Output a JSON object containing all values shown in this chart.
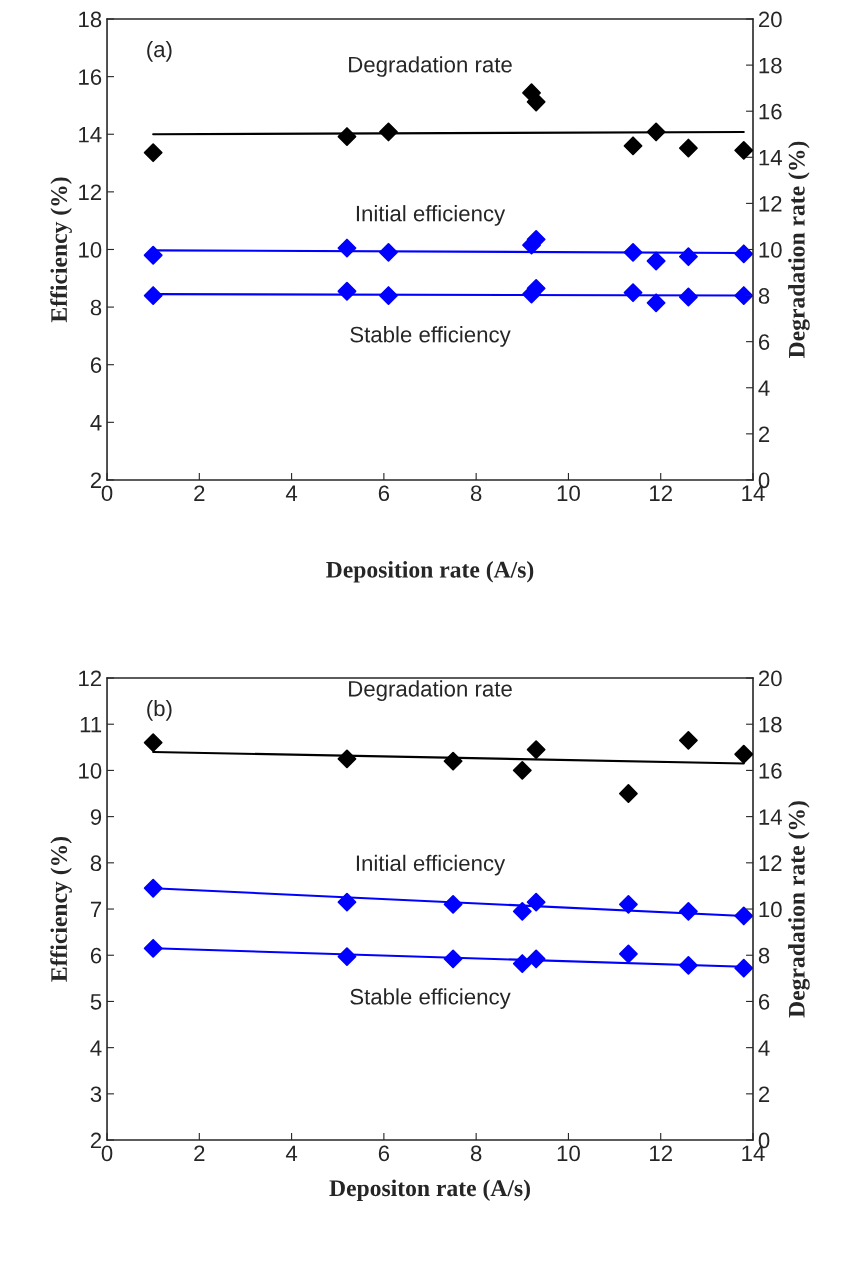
{
  "chart_data": [
    {
      "type": "scatter",
      "xlabel": "Deposition rate (A/s)",
      "ylabel": "Efficiency (%)",
      "y2label": "Degradation rate (%)",
      "xlim": [
        0,
        14
      ],
      "xticks": [
        0,
        2,
        4,
        6,
        8,
        10,
        12,
        14
      ],
      "ylim": [
        2,
        18
      ],
      "yticks": [
        2,
        4,
        6,
        8,
        10,
        12,
        14,
        16,
        18
      ],
      "y2lim": [
        0,
        20
      ],
      "y2ticks": [
        0,
        2,
        4,
        6,
        8,
        10,
        12,
        14,
        16,
        18,
        20
      ],
      "grid": false,
      "marker": "diamond",
      "annotations": [
        "(a)"
      ],
      "series": [
        {
          "axis": "y2",
          "color": "#000000",
          "x": [
            1,
            5.2,
            6.1,
            9.2,
            9.3,
            11.4,
            11.9,
            12.6,
            13.8
          ],
          "values": [
            14.2,
            14.9,
            15.1,
            16.8,
            16.4,
            14.5,
            15.1,
            14.4,
            14.3
          ]
        },
        {
          "color": "#0000ff",
          "x": [
            1,
            5.2,
            6.1,
            9.2,
            9.3,
            11.4,
            11.9,
            12.6,
            13.8
          ],
          "values": [
            9.8,
            10.05,
            9.9,
            10.15,
            10.35,
            9.9,
            9.6,
            9.75,
            9.85
          ]
        },
        {
          "color": "#0000ff",
          "x": [
            1,
            5.2,
            6.1,
            9.2,
            9.3,
            11.4,
            11.9,
            12.6,
            13.8
          ],
          "values": [
            8.4,
            8.55,
            8.4,
            8.45,
            8.65,
            8.5,
            8.15,
            8.35,
            8.4
          ]
        },
        {
          "type": "line",
          "name": "Degradation rate",
          "axis": "y2",
          "color": "#000000",
          "marker": "none",
          "x": [
            1,
            13.8
          ],
          "values": [
            15.0,
            15.1
          ]
        },
        {
          "type": "line",
          "name": "Initial efficiency",
          "color": "#0000ff",
          "marker": "none",
          "x": [
            1,
            13.8
          ],
          "values": [
            9.97,
            9.88
          ]
        },
        {
          "type": "line",
          "name": "Stable efficiency",
          "color": "#0000ff",
          "marker": "none",
          "x": [
            1,
            13.8
          ],
          "values": [
            8.45,
            8.4
          ]
        }
      ]
    },
    {
      "type": "scatter",
      "xlabel": "Depositon rate (A/s)",
      "ylabel": "Efficiency (%)",
      "y2label": "Degradation rate (%)",
      "xlim": [
        0,
        14
      ],
      "xticks": [
        0,
        2,
        4,
        6,
        8,
        10,
        12,
        14
      ],
      "ylim": [
        2,
        12
      ],
      "yticks": [
        2,
        3,
        4,
        5,
        6,
        7,
        8,
        9,
        10,
        11,
        12
      ],
      "y2lim": [
        0,
        20
      ],
      "y2ticks": [
        0,
        2,
        4,
        6,
        8,
        10,
        12,
        14,
        16,
        18,
        20
      ],
      "grid": false,
      "marker": "diamond",
      "annotations": [
        "(b)"
      ],
      "series": [
        {
          "axis": "y2",
          "color": "#000000",
          "x": [
            1,
            5.2,
            7.5,
            9.0,
            9.3,
            11.3,
            12.6,
            13.8
          ],
          "values": [
            17.2,
            16.5,
            16.4,
            16.0,
            16.9,
            15.0,
            17.3,
            16.7
          ]
        },
        {
          "color": "#0000ff",
          "x": [
            1,
            5.2,
            7.5,
            9.0,
            9.3,
            11.3,
            12.6,
            13.8
          ],
          "values": [
            7.45,
            7.15,
            7.1,
            6.95,
            7.15,
            7.1,
            6.95,
            6.85
          ]
        },
        {
          "color": "#0000ff",
          "x": [
            1,
            5.2,
            7.5,
            9.0,
            9.3,
            11.3,
            12.6,
            13.8
          ],
          "values": [
            6.15,
            5.97,
            5.92,
            5.82,
            5.92,
            6.03,
            5.78,
            5.72
          ]
        },
        {
          "type": "line",
          "name": "Degradation rate",
          "axis": "y2",
          "color": "#000000",
          "marker": "none",
          "x": [
            1,
            13.8
          ],
          "values": [
            16.8,
            16.3
          ]
        },
        {
          "type": "line",
          "name": "Initial efficiency",
          "color": "#0000ff",
          "marker": "none",
          "x": [
            1,
            13.8
          ],
          "values": [
            7.45,
            6.85
          ]
        },
        {
          "type": "line",
          "name": "Stable efficiency",
          "color": "#0000ff",
          "marker": "none",
          "x": [
            1,
            13.8
          ],
          "values": [
            6.15,
            5.75
          ]
        }
      ]
    }
  ]
}
